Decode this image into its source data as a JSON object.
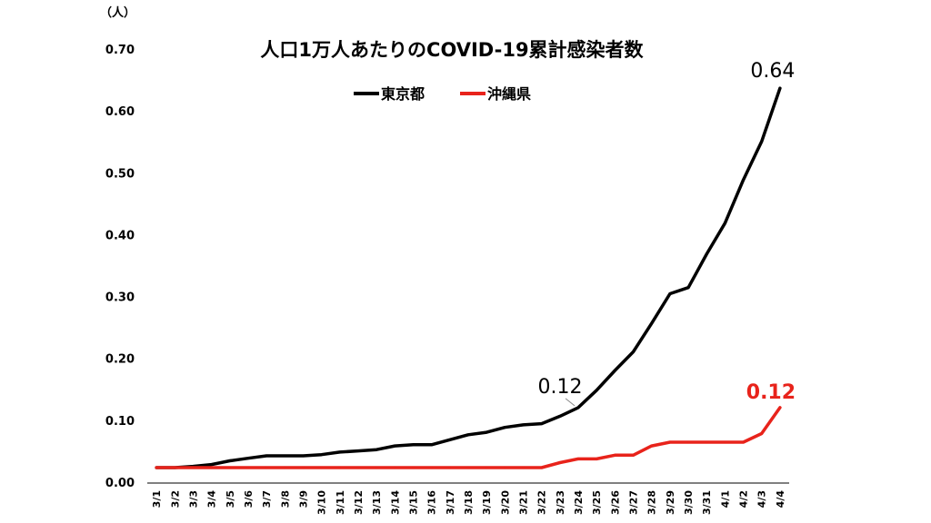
{
  "chart_data": {
    "type": "line",
    "title": "人口1万人あたりのCOVID-19累計感染者数",
    "y_unit_label": "（人）",
    "ylim": [
      0,
      0.7
    ],
    "y_ticks": [
      "0.00",
      "0.10",
      "0.20",
      "0.30",
      "0.40",
      "0.50",
      "0.60",
      "0.70"
    ],
    "grid": false,
    "legend_position": "top-center",
    "categories": [
      "3/1",
      "3/2",
      "3/3",
      "3/4",
      "3/5",
      "3/6",
      "3/7",
      "3/8",
      "3/9",
      "3/10",
      "3/11",
      "3/12",
      "3/13",
      "3/14",
      "3/15",
      "3/16",
      "3/17",
      "3/18",
      "3/19",
      "3/20",
      "3/21",
      "3/22",
      "3/23",
      "3/24",
      "3/25",
      "3/26",
      "3/27",
      "3/28",
      "3/29",
      "3/30",
      "3/31",
      "4/1",
      "4/2",
      "4/3",
      "4/4"
    ],
    "series": [
      {
        "name": "東京都",
        "color": "#000000",
        "values": [
          0.025,
          0.025,
          0.027,
          0.03,
          0.036,
          0.04,
          0.044,
          0.044,
          0.044,
          0.046,
          0.05,
          0.052,
          0.054,
          0.06,
          0.062,
          0.062,
          0.07,
          0.078,
          0.082,
          0.09,
          0.094,
          0.096,
          0.108,
          0.122,
          0.15,
          0.182,
          0.212,
          0.258,
          0.306,
          0.316,
          0.37,
          0.42,
          0.49,
          0.552,
          0.638
        ]
      },
      {
        "name": "沖縄県",
        "color": "#e8231b",
        "values": [
          0.025,
          0.025,
          0.025,
          0.025,
          0.025,
          0.025,
          0.025,
          0.025,
          0.025,
          0.025,
          0.025,
          0.025,
          0.025,
          0.025,
          0.025,
          0.025,
          0.025,
          0.025,
          0.025,
          0.025,
          0.025,
          0.025,
          0.033,
          0.039,
          0.039,
          0.045,
          0.045,
          0.06,
          0.066,
          0.066,
          0.066,
          0.066,
          0.066,
          0.08,
          0.122
        ]
      }
    ],
    "annotations": [
      {
        "series": 0,
        "category": "3/24",
        "text": "0.12",
        "leader": true
      },
      {
        "series": 0,
        "category": "4/4",
        "text": "0.64"
      },
      {
        "series": 1,
        "category": "4/4",
        "text": "0.12"
      }
    ]
  }
}
